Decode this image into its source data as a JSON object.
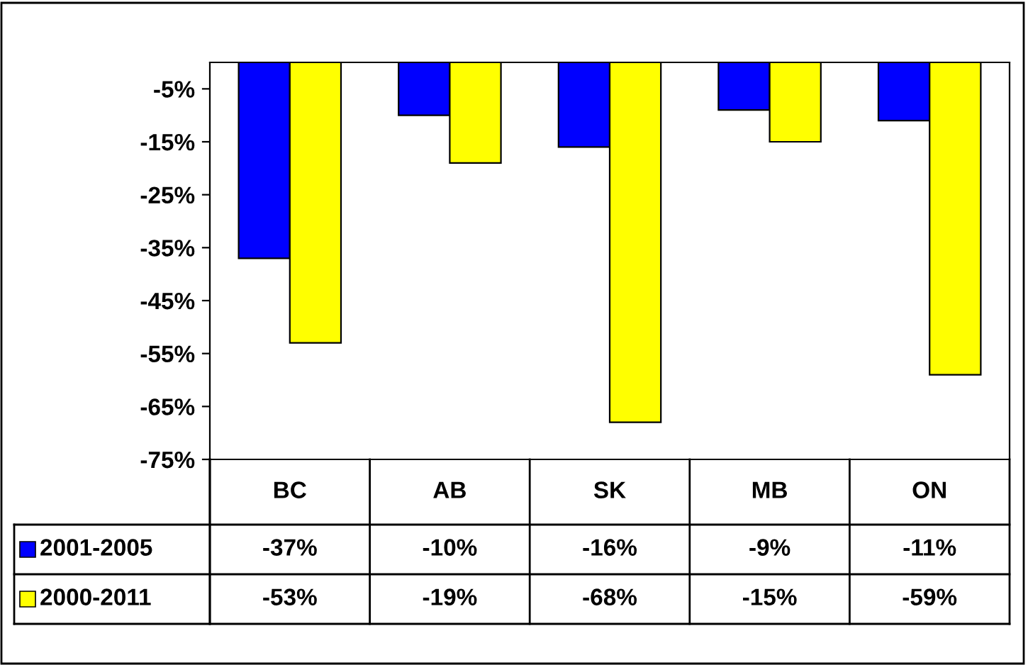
{
  "chart_data": {
    "type": "bar",
    "categories": [
      "BC",
      "AB",
      "SK",
      "MB",
      "ON"
    ],
    "series": [
      {
        "name": "2001-2005",
        "color": "#0000ff",
        "values": [
          -37,
          -10,
          -16,
          -9,
          -11
        ],
        "value_labels": [
          "-37%",
          "-10%",
          "-16%",
          "-9%",
          "-11%"
        ]
      },
      {
        "name": "2000-2011",
        "color": "#ffff00",
        "values": [
          -53,
          -19,
          -68,
          -15,
          -59
        ],
        "value_labels": [
          "-53%",
          "-19%",
          "-68%",
          "-15%",
          "-59%"
        ]
      }
    ],
    "ylim": [
      -75,
      0
    ],
    "yticks": [
      {
        "value": -75,
        "label": "-75%"
      },
      {
        "value": -65,
        "label": "-65%"
      },
      {
        "value": -55,
        "label": "-55%"
      },
      {
        "value": -45,
        "label": "-45%"
      },
      {
        "value": -35,
        "label": "-35%"
      },
      {
        "value": -25,
        "label": "-25%"
      },
      {
        "value": -15,
        "label": "-15%"
      },
      {
        "value": -5,
        "label": "-5%"
      }
    ],
    "legend": "bottom",
    "grid": false
  }
}
